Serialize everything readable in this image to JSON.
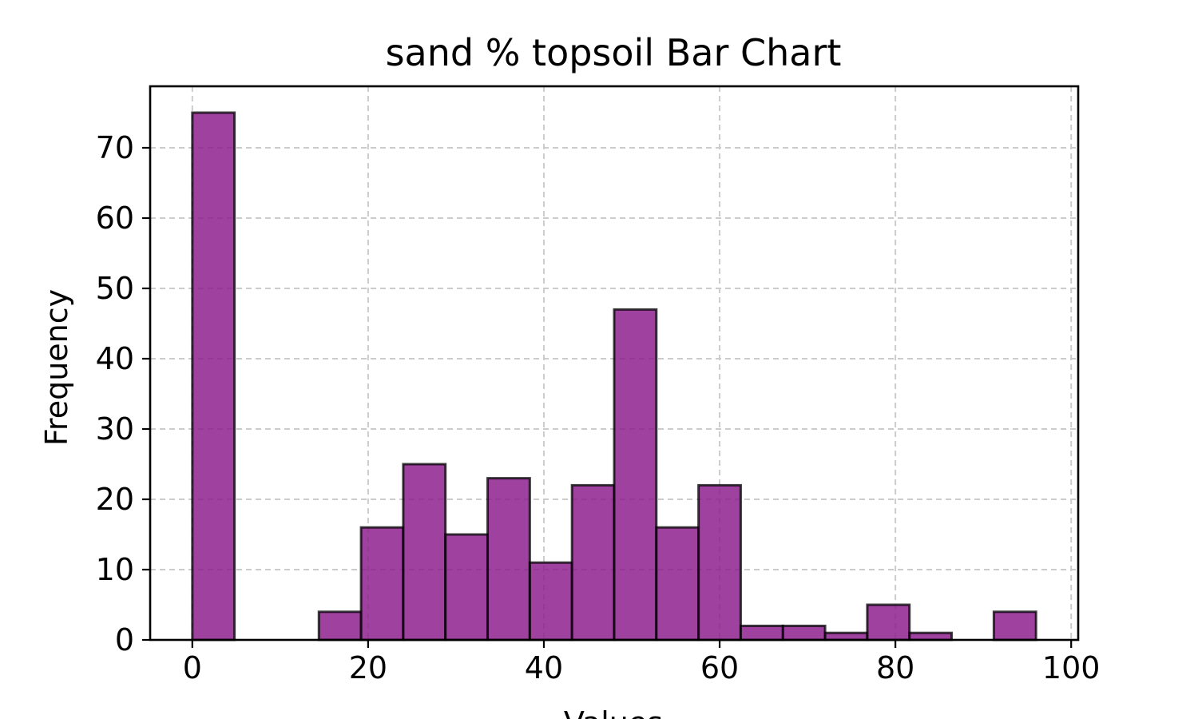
{
  "chart_data": {
    "type": "bar",
    "title": "sand % topsoil Bar Chart",
    "xlabel": "Values",
    "ylabel": "Frequency",
    "xlim": [
      -4.8,
      100.8
    ],
    "ylim": [
      0,
      78.75
    ],
    "x_ticks": [
      0,
      20,
      40,
      60,
      80,
      100
    ],
    "y_ticks": [
      0,
      10,
      20,
      30,
      40,
      50,
      60,
      70
    ],
    "grid": true,
    "bar_color": "#8b1a8b",
    "bar_opacity": 0.83,
    "edge_color": "#000000",
    "bins": [
      {
        "x0": 0,
        "x1": 4.8,
        "value": 75
      },
      {
        "x0": 4.8,
        "x1": 9.6,
        "value": 0
      },
      {
        "x0": 9.6,
        "x1": 14.4,
        "value": 0
      },
      {
        "x0": 14.4,
        "x1": 19.2,
        "value": 4
      },
      {
        "x0": 19.2,
        "x1": 24.0,
        "value": 16
      },
      {
        "x0": 24.0,
        "x1": 28.8,
        "value": 25
      },
      {
        "x0": 28.8,
        "x1": 33.6,
        "value": 15
      },
      {
        "x0": 33.6,
        "x1": 38.4,
        "value": 23
      },
      {
        "x0": 38.4,
        "x1": 43.2,
        "value": 11
      },
      {
        "x0": 43.2,
        "x1": 48.0,
        "value": 22
      },
      {
        "x0": 48.0,
        "x1": 52.8,
        "value": 47
      },
      {
        "x0": 52.8,
        "x1": 57.6,
        "value": 16
      },
      {
        "x0": 57.6,
        "x1": 62.4,
        "value": 22
      },
      {
        "x0": 62.4,
        "x1": 67.2,
        "value": 2
      },
      {
        "x0": 67.2,
        "x1": 72.0,
        "value": 2
      },
      {
        "x0": 72.0,
        "x1": 76.8,
        "value": 1
      },
      {
        "x0": 76.8,
        "x1": 81.6,
        "value": 5
      },
      {
        "x0": 81.6,
        "x1": 86.4,
        "value": 1
      },
      {
        "x0": 86.4,
        "x1": 91.2,
        "value": 0
      },
      {
        "x0": 91.2,
        "x1": 96.0,
        "value": 4
      }
    ]
  }
}
